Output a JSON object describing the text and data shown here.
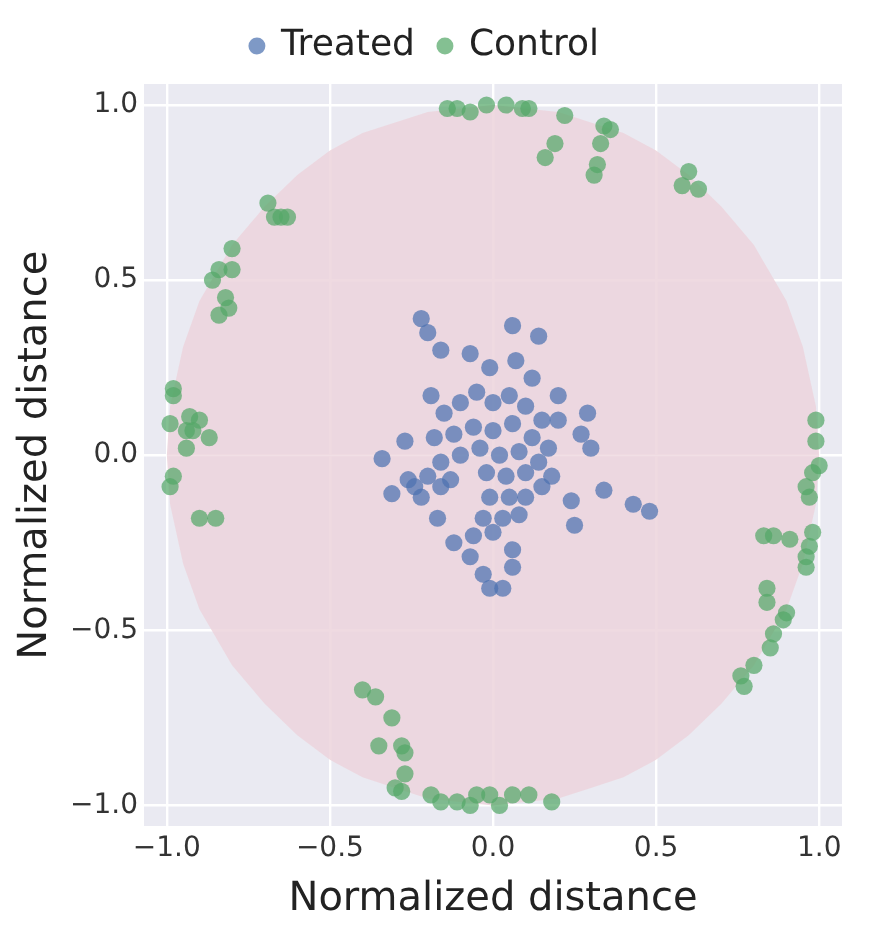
{
  "chart_data": {
    "type": "scatter",
    "xlabel": "Normalized distance",
    "ylabel": "Normalized distance",
    "xlim": [
      -1.07,
      1.07
    ],
    "ylim": [
      -1.06,
      1.06
    ],
    "xticks": [
      {
        "value": -1,
        "label": "−1.0"
      },
      {
        "value": -0.5,
        "label": "−0.5"
      },
      {
        "value": 0,
        "label": "0.0"
      },
      {
        "value": 0.5,
        "label": "0.5"
      },
      {
        "value": 1,
        "label": "1.0"
      }
    ],
    "yticks": [
      {
        "value": -1,
        "label": "−1.0"
      },
      {
        "value": -0.5,
        "label": "−0.5"
      },
      {
        "value": 0,
        "label": "0.0"
      },
      {
        "value": 0.5,
        "label": "0.5"
      },
      {
        "value": 1,
        "label": "1.0"
      }
    ],
    "grid": true,
    "legend": "top",
    "series": [
      {
        "type": "area",
        "color": "#ecd4dc",
        "x": [
          -1,
          -0.99,
          -0.95,
          -0.9,
          -0.8,
          -0.7,
          -0.6,
          -0.5,
          -0.4,
          -0.3,
          -0.2,
          -0.1,
          0,
          0.1,
          0.2,
          0.3,
          0.4,
          0.5,
          0.6,
          0.7,
          0.8,
          0.9,
          0.95,
          0.99,
          1
        ],
        "values": [
          0,
          0.14,
          0.31,
          0.44,
          0.6,
          0.71,
          0.8,
          0.87,
          0.92,
          0.95,
          0.98,
          0.99,
          1,
          0.99,
          0.98,
          0.95,
          0.92,
          0.87,
          0.8,
          0.71,
          0.6,
          0.44,
          0.31,
          0.14,
          0
        ]
      },
      {
        "type": "area",
        "color": "#ecd4dc",
        "x": [
          -1,
          -0.99,
          -0.95,
          -0.9,
          -0.8,
          -0.7,
          -0.6,
          -0.5,
          -0.4,
          -0.3,
          -0.2,
          -0.1,
          0,
          0.1,
          0.2,
          0.3,
          0.4,
          0.5,
          0.6,
          0.7,
          0.8,
          0.9,
          0.95,
          0.99,
          1
        ],
        "values": [
          0,
          -0.14,
          -0.31,
          -0.44,
          -0.6,
          -0.71,
          -0.8,
          -0.87,
          -0.92,
          -0.95,
          -0.98,
          -0.99,
          -1,
          -0.99,
          -0.98,
          -0.95,
          -0.92,
          -0.87,
          -0.8,
          -0.71,
          -0.6,
          -0.44,
          -0.31,
          -0.14,
          0
        ]
      },
      {
        "name": "Treated",
        "color": "#4c72b0",
        "x": [
          -0.22,
          -0.2,
          0.06,
          0.14,
          -0.16,
          -0.07,
          -0.01,
          0.07,
          -0.19,
          0.2,
          0.29,
          0.27,
          0.3,
          -0.27,
          -0.34,
          -0.31,
          -0.17,
          -0.12,
          -0.06,
          -0.07,
          -0.03,
          -0.01,
          0.03,
          0.06,
          0.06,
          0.25,
          0.34,
          0.43,
          0.48,
          0.24,
          0.18,
          0.2,
          0.12,
          -0.16,
          -0.24,
          -0.15,
          -0.1,
          -0.05,
          0,
          0.05,
          0.1,
          0.15,
          -0.18,
          -0.12,
          -0.06,
          0,
          0.06,
          0.12,
          0.17,
          -0.16,
          -0.1,
          -0.04,
          0.02,
          0.08,
          0.14,
          -0.2,
          -0.13,
          -0.02,
          0.04,
          0.1,
          0.15,
          -0.01,
          0.05,
          0.1,
          -0.03,
          0.03,
          0.08,
          0,
          -0.22,
          -0.26
        ],
        "values": [
          0.39,
          0.35,
          0.37,
          0.34,
          0.3,
          0.29,
          0.25,
          0.27,
          0.17,
          0.17,
          0.12,
          0.06,
          0.02,
          0.04,
          -0.01,
          -0.11,
          -0.18,
          -0.25,
          -0.23,
          -0.29,
          -0.34,
          -0.38,
          -0.38,
          -0.27,
          -0.32,
          -0.2,
          -0.1,
          -0.14,
          -0.16,
          -0.13,
          -0.06,
          0.1,
          0.22,
          -0.09,
          -0.09,
          0.12,
          0.15,
          0.18,
          0.15,
          0.17,
          0.14,
          0.1,
          0.05,
          0.06,
          0.08,
          0.07,
          0.09,
          0.05,
          0.02,
          -0.02,
          0,
          0.02,
          0,
          0.01,
          -0.02,
          -0.06,
          -0.07,
          -0.05,
          -0.06,
          -0.05,
          -0.09,
          -0.12,
          -0.12,
          -0.12,
          -0.18,
          -0.18,
          -0.17,
          -0.22,
          -0.12,
          -0.07
        ]
      },
      {
        "name": "Control",
        "color": "#55a868",
        "x": [
          -0.14,
          -0.11,
          -0.07,
          -0.02,
          0.04,
          0.09,
          0.11,
          0.22,
          0.19,
          0.16,
          0.34,
          0.36,
          0.33,
          0.32,
          0.31,
          0.6,
          0.58,
          0.63,
          -0.69,
          -0.67,
          -0.65,
          -0.63,
          -0.8,
          -0.8,
          -0.84,
          -0.86,
          -0.82,
          -0.84,
          -0.81,
          -0.98,
          -0.98,
          -0.99,
          -0.93,
          -0.9,
          -0.94,
          -0.92,
          -0.87,
          -0.94,
          -0.98,
          -0.99,
          -0.9,
          -0.85,
          0.99,
          0.99,
          1.0,
          0.98,
          0.96,
          0.97,
          0.98,
          0.83,
          0.86,
          0.91,
          0.97,
          0.96,
          0.96,
          0.84,
          0.84,
          0.9,
          0.89,
          0.86,
          0.85,
          0.8,
          0.76,
          0.77,
          -0.4,
          -0.36,
          -0.31,
          -0.35,
          -0.28,
          -0.27,
          -0.27,
          -0.3,
          -0.28,
          -0.19,
          -0.16,
          -0.11,
          -0.07,
          -0.05,
          -0.01,
          0.02,
          0.06,
          0.11,
          0.18
        ],
        "values": [
          0.99,
          0.99,
          0.98,
          1.0,
          1.0,
          0.99,
          0.99,
          0.97,
          0.89,
          0.85,
          0.94,
          0.93,
          0.89,
          0.83,
          0.8,
          0.81,
          0.77,
          0.76,
          0.72,
          0.68,
          0.68,
          0.68,
          0.59,
          0.53,
          0.53,
          0.5,
          0.45,
          0.4,
          0.42,
          0.19,
          0.17,
          0.09,
          0.11,
          0.1,
          0.07,
          0.07,
          0.05,
          0.02,
          -0.06,
          -0.09,
          -0.18,
          -0.18,
          0.1,
          0.04,
          -0.03,
          -0.05,
          -0.09,
          -0.12,
          -0.22,
          -0.23,
          -0.23,
          -0.24,
          -0.26,
          -0.29,
          -0.32,
          -0.38,
          -0.42,
          -0.45,
          -0.47,
          -0.51,
          -0.55,
          -0.6,
          -0.63,
          -0.66,
          -0.67,
          -0.69,
          -0.75,
          -0.83,
          -0.83,
          -0.85,
          -0.91,
          -0.95,
          -0.96,
          -0.97,
          -0.99,
          -0.99,
          -1.0,
          -0.97,
          -0.97,
          -1.0,
          -0.97,
          -0.97,
          -0.99
        ]
      }
    ]
  }
}
